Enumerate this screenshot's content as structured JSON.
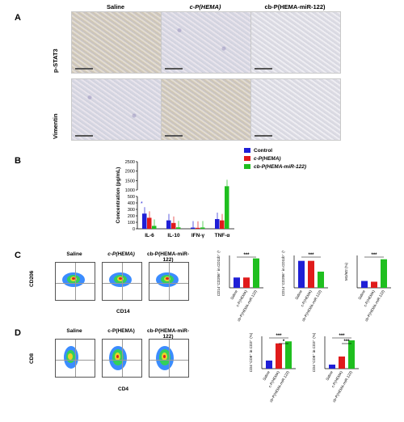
{
  "panels": {
    "a": "A",
    "b": "B",
    "c": "C",
    "d": "D"
  },
  "panel_a": {
    "columns": [
      "Saline",
      "c-P(HEMA)",
      "cb-P(HEMA-miR-122)"
    ],
    "rows": [
      "p-STAT3",
      "Vimentin"
    ]
  },
  "panel_c": {
    "columns": [
      "Saline",
      "c-P(HEMA)",
      "cb-P(HEMA-miR-122)"
    ],
    "y_marker": "CD206",
    "x_marker": "CD14"
  },
  "panel_d": {
    "columns": [
      "Saline",
      "c-P(HEMA)",
      "cb-P(HEMA-miR-122)"
    ],
    "y_marker": "CD8",
    "x_marker": "CD4"
  },
  "colors": {
    "control": "#1f1fd6",
    "chema": "#e01b1b",
    "cb": "#1fbf1f"
  },
  "chart_data": [
    {
      "type": "bar",
      "ylabel": "Concentration (pg/mL)",
      "categories": [
        "IL-6",
        "IL-10",
        "IFN-γ",
        "TNF-α"
      ],
      "yticks": [
        "0",
        "100",
        "200",
        "300",
        "400",
        "500",
        "1000",
        "1500",
        "2000",
        "2500"
      ],
      "ylim": [
        0,
        2500
      ],
      "axis_break": [
        500,
        1000
      ],
      "legend": [
        "Control",
        "c-P(HEMA)",
        "cb-P(HEMA-miR-122)"
      ],
      "series": [
        {
          "name": "Control",
          "values": [
            235,
            130,
            18,
            150
          ]
        },
        {
          "name": "c-P(HEMA)",
          "values": [
            170,
            90,
            15,
            130
          ]
        },
        {
          "name": "cb-P(HEMA-miR-122)",
          "values": [
            45,
            22,
            20,
            1200
          ]
        }
      ],
      "annotations": [
        "*"
      ]
    },
    {
      "type": "bar",
      "ylabel": "CD14⁺CD206⁺ in CD11b⁺ (%)",
      "categories": [
        "Saline",
        "c-P(HEMA)",
        "cb-P(HEMA-miR-122)"
      ],
      "values": [
        7,
        7,
        20
      ],
      "significance": "***"
    },
    {
      "type": "bar",
      "ylabel": "CD14⁺CD206⁺ in CD11b⁺ (%)",
      "categories": [
        "Saline",
        "c-P(HEMA)",
        "cb-P(HEMA-miR-122)"
      ],
      "values": [
        50,
        50,
        30
      ],
      "significance": "***"
    },
    {
      "type": "bar",
      "ylabel": "M1/M2 (%)",
      "categories": [
        "Saline",
        "c-P(HEMA)",
        "cb-P(HEMA-miR-122)"
      ],
      "values": [
        18,
        16,
        75
      ],
      "significance": "***"
    },
    {
      "type": "bar",
      "ylabel": "CD4⁺CD8⁺ in CD3⁺ (%)",
      "categories": [
        "Saline",
        "c-P(HEMA)",
        "cb-P(HEMA-miR-122)"
      ],
      "values": [
        8,
        25,
        27
      ],
      "significance": [
        "***",
        "*"
      ]
    },
    {
      "type": "bar",
      "ylabel": "CD4⁺CD8⁺ in CD3⁺ (%)",
      "categories": [
        "Saline",
        "c-P(HEMA)",
        "cb-P(HEMA-miR-122)"
      ],
      "values": [
        5,
        15,
        35
      ],
      "significance": [
        "***",
        "***"
      ]
    }
  ]
}
